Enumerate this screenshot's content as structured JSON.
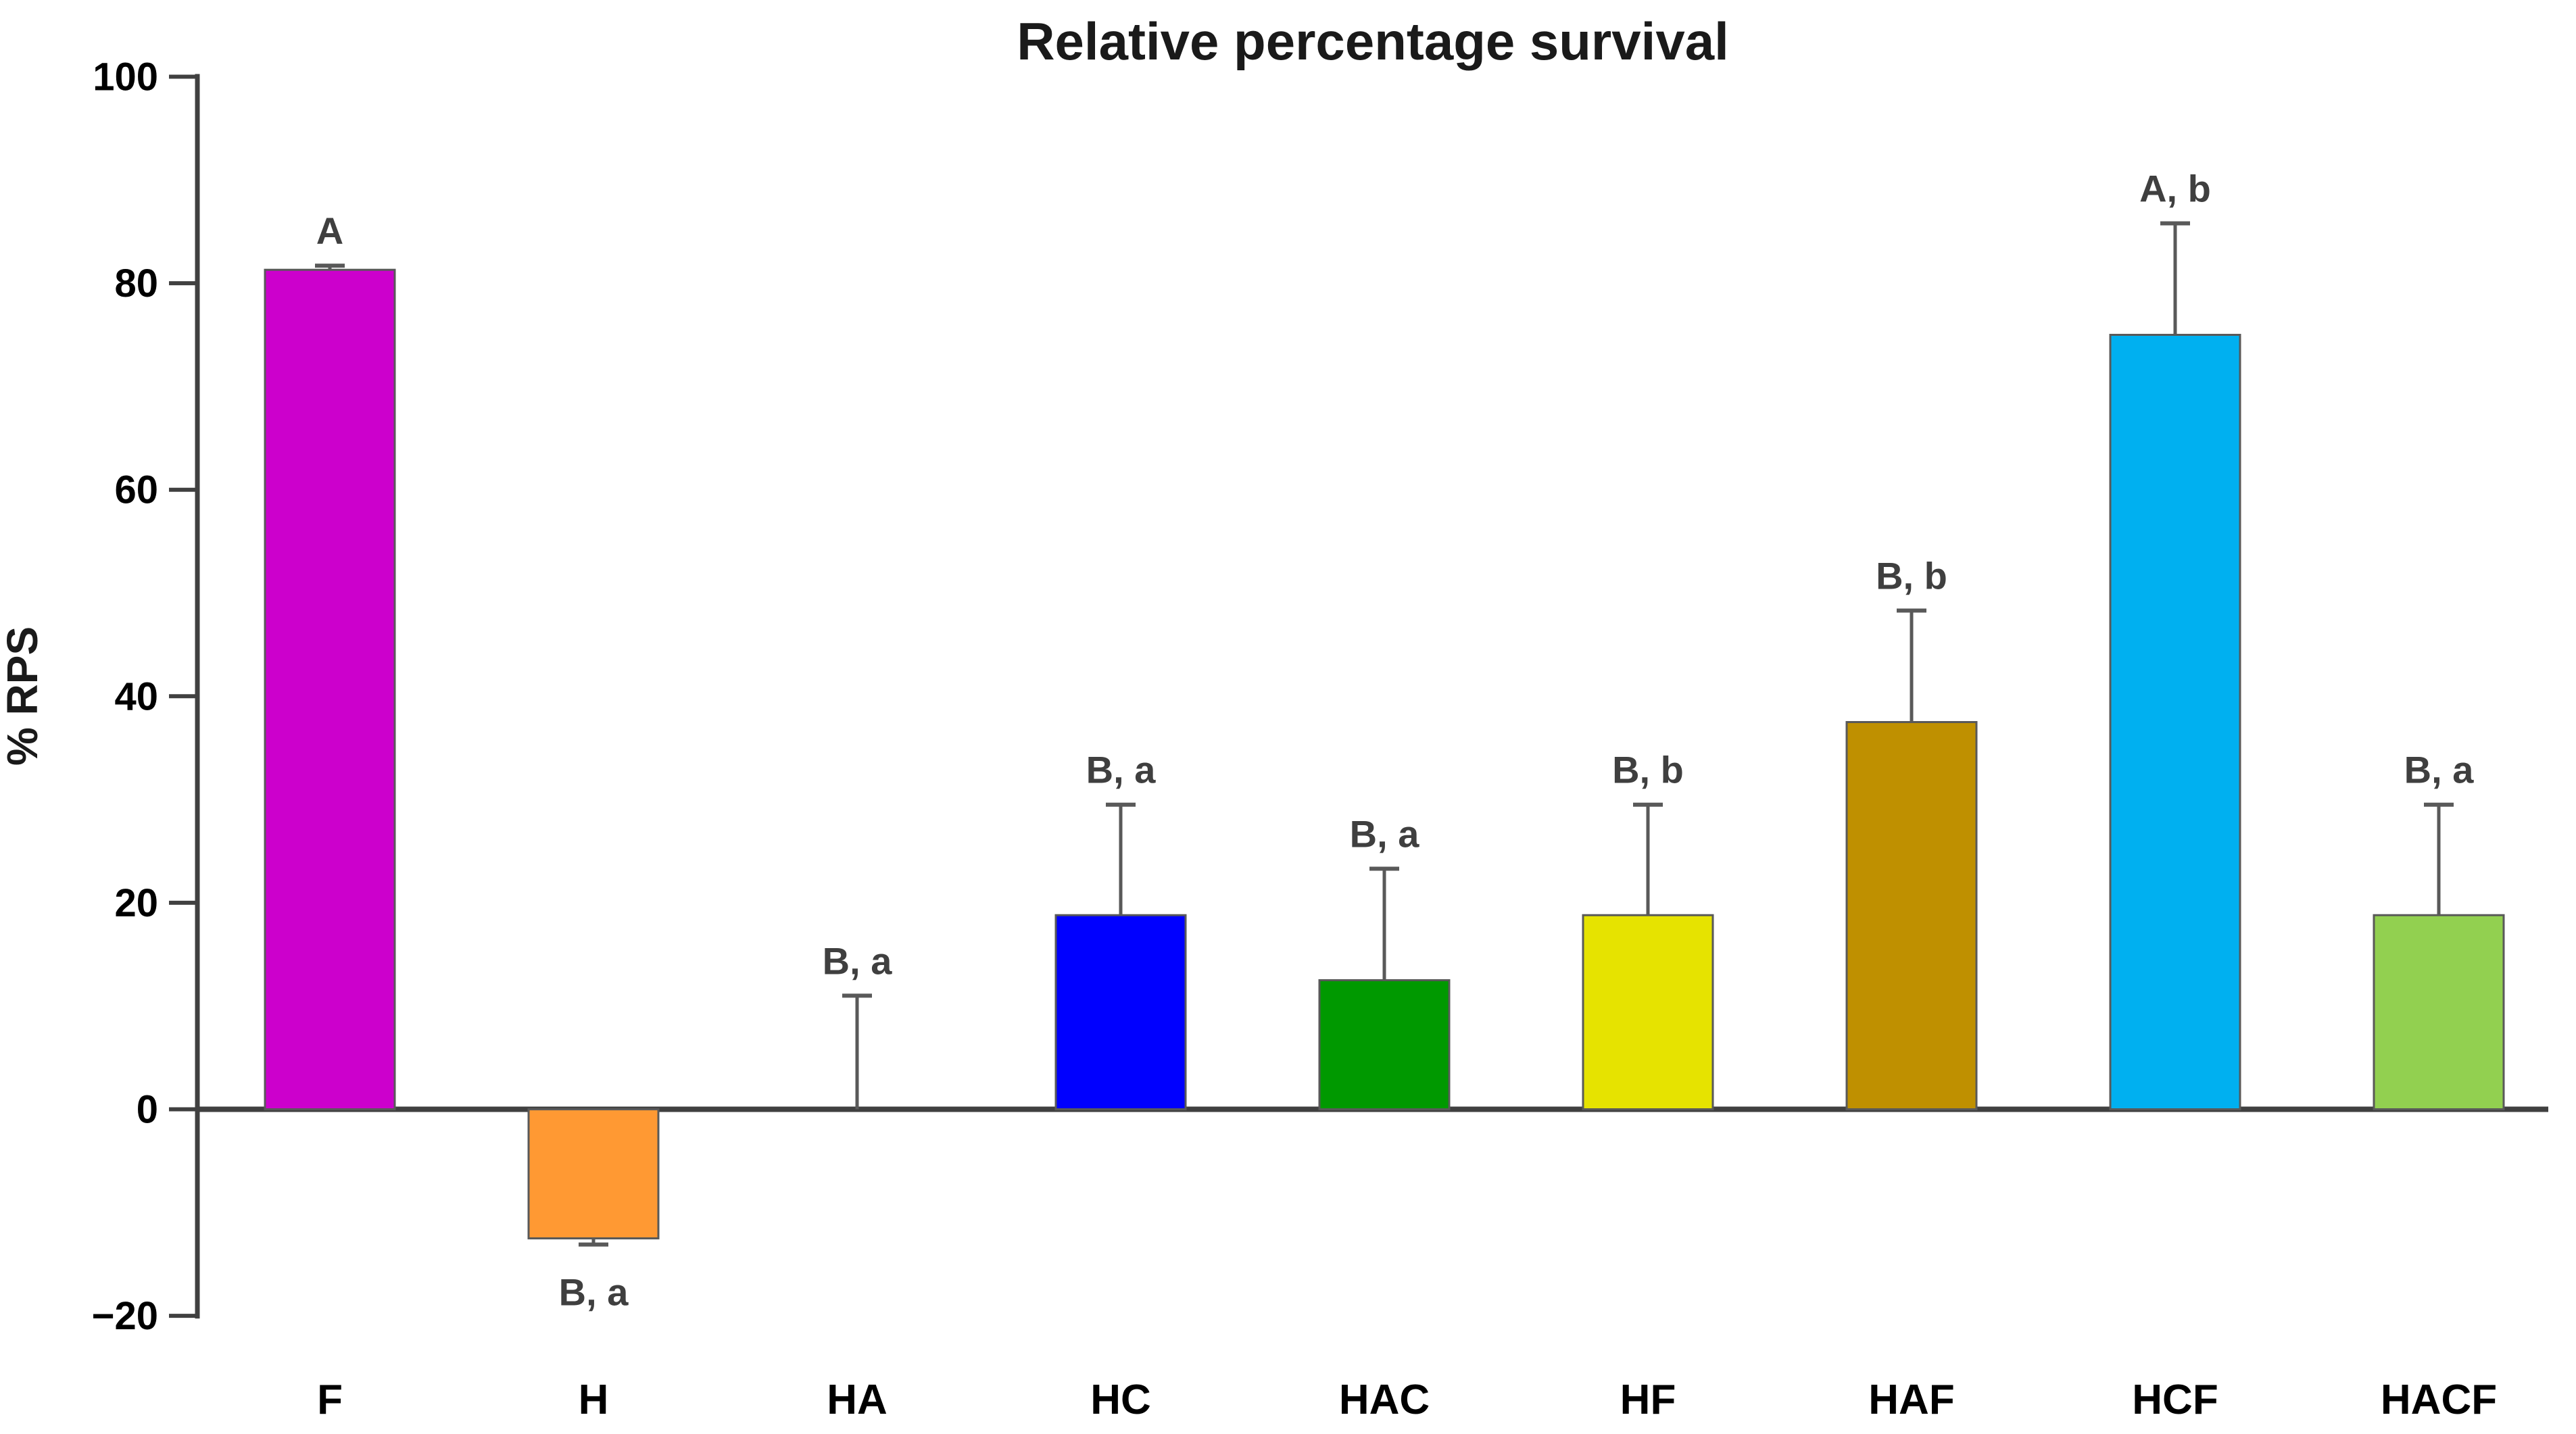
{
  "title": "Relative percentage survival",
  "y_axis": {
    "label": "% RPS",
    "tick_values": [
      100,
      80,
      60,
      40,
      20,
      0,
      -20
    ],
    "range": [
      -20,
      100
    ]
  },
  "chart_data": {
    "type": "bar",
    "title": "Relative percentage survival",
    "xlabel": "",
    "ylabel": "% RPS",
    "ylim": [
      -20,
      100
    ],
    "yticks": [
      100,
      80,
      60,
      40,
      20,
      0,
      -20
    ],
    "grid": false,
    "legend": false,
    "categories": [
      "F",
      "H",
      "HA",
      "HC",
      "HAC",
      "HF",
      "HAF",
      "HCF",
      "HACF"
    ],
    "values": [
      81.3,
      -12.5,
      0,
      18.8,
      12.5,
      18.8,
      37.5,
      75,
      18.8
    ],
    "errors_upper": [
      0.4,
      0.6,
      11,
      10.7,
      10.8,
      10.7,
      10.8,
      10.8,
      10.7
    ],
    "bar_colors": [
      "#CC00CC",
      "#FF9933",
      null,
      "#0000FF",
      "#009900",
      "#E6E300",
      "#BF9000",
      "#00B0F0",
      "#92D050"
    ],
    "significance_labels": [
      "A",
      "B, a",
      "B, a",
      "B, a",
      "B, a",
      "B, b",
      "B, b",
      "A, b",
      "B, a"
    ],
    "label_positions": [
      "above",
      "below",
      "above",
      "above",
      "above",
      "above",
      "above",
      "above",
      "above"
    ]
  },
  "colors": {
    "background": "#ffffff",
    "axis": "#404040",
    "bar_border": "#595959",
    "error_bar": "#595959",
    "annotation_text": "#3f3f3f",
    "tick_text": "#000000",
    "title_text": "#1a1a1a"
  }
}
